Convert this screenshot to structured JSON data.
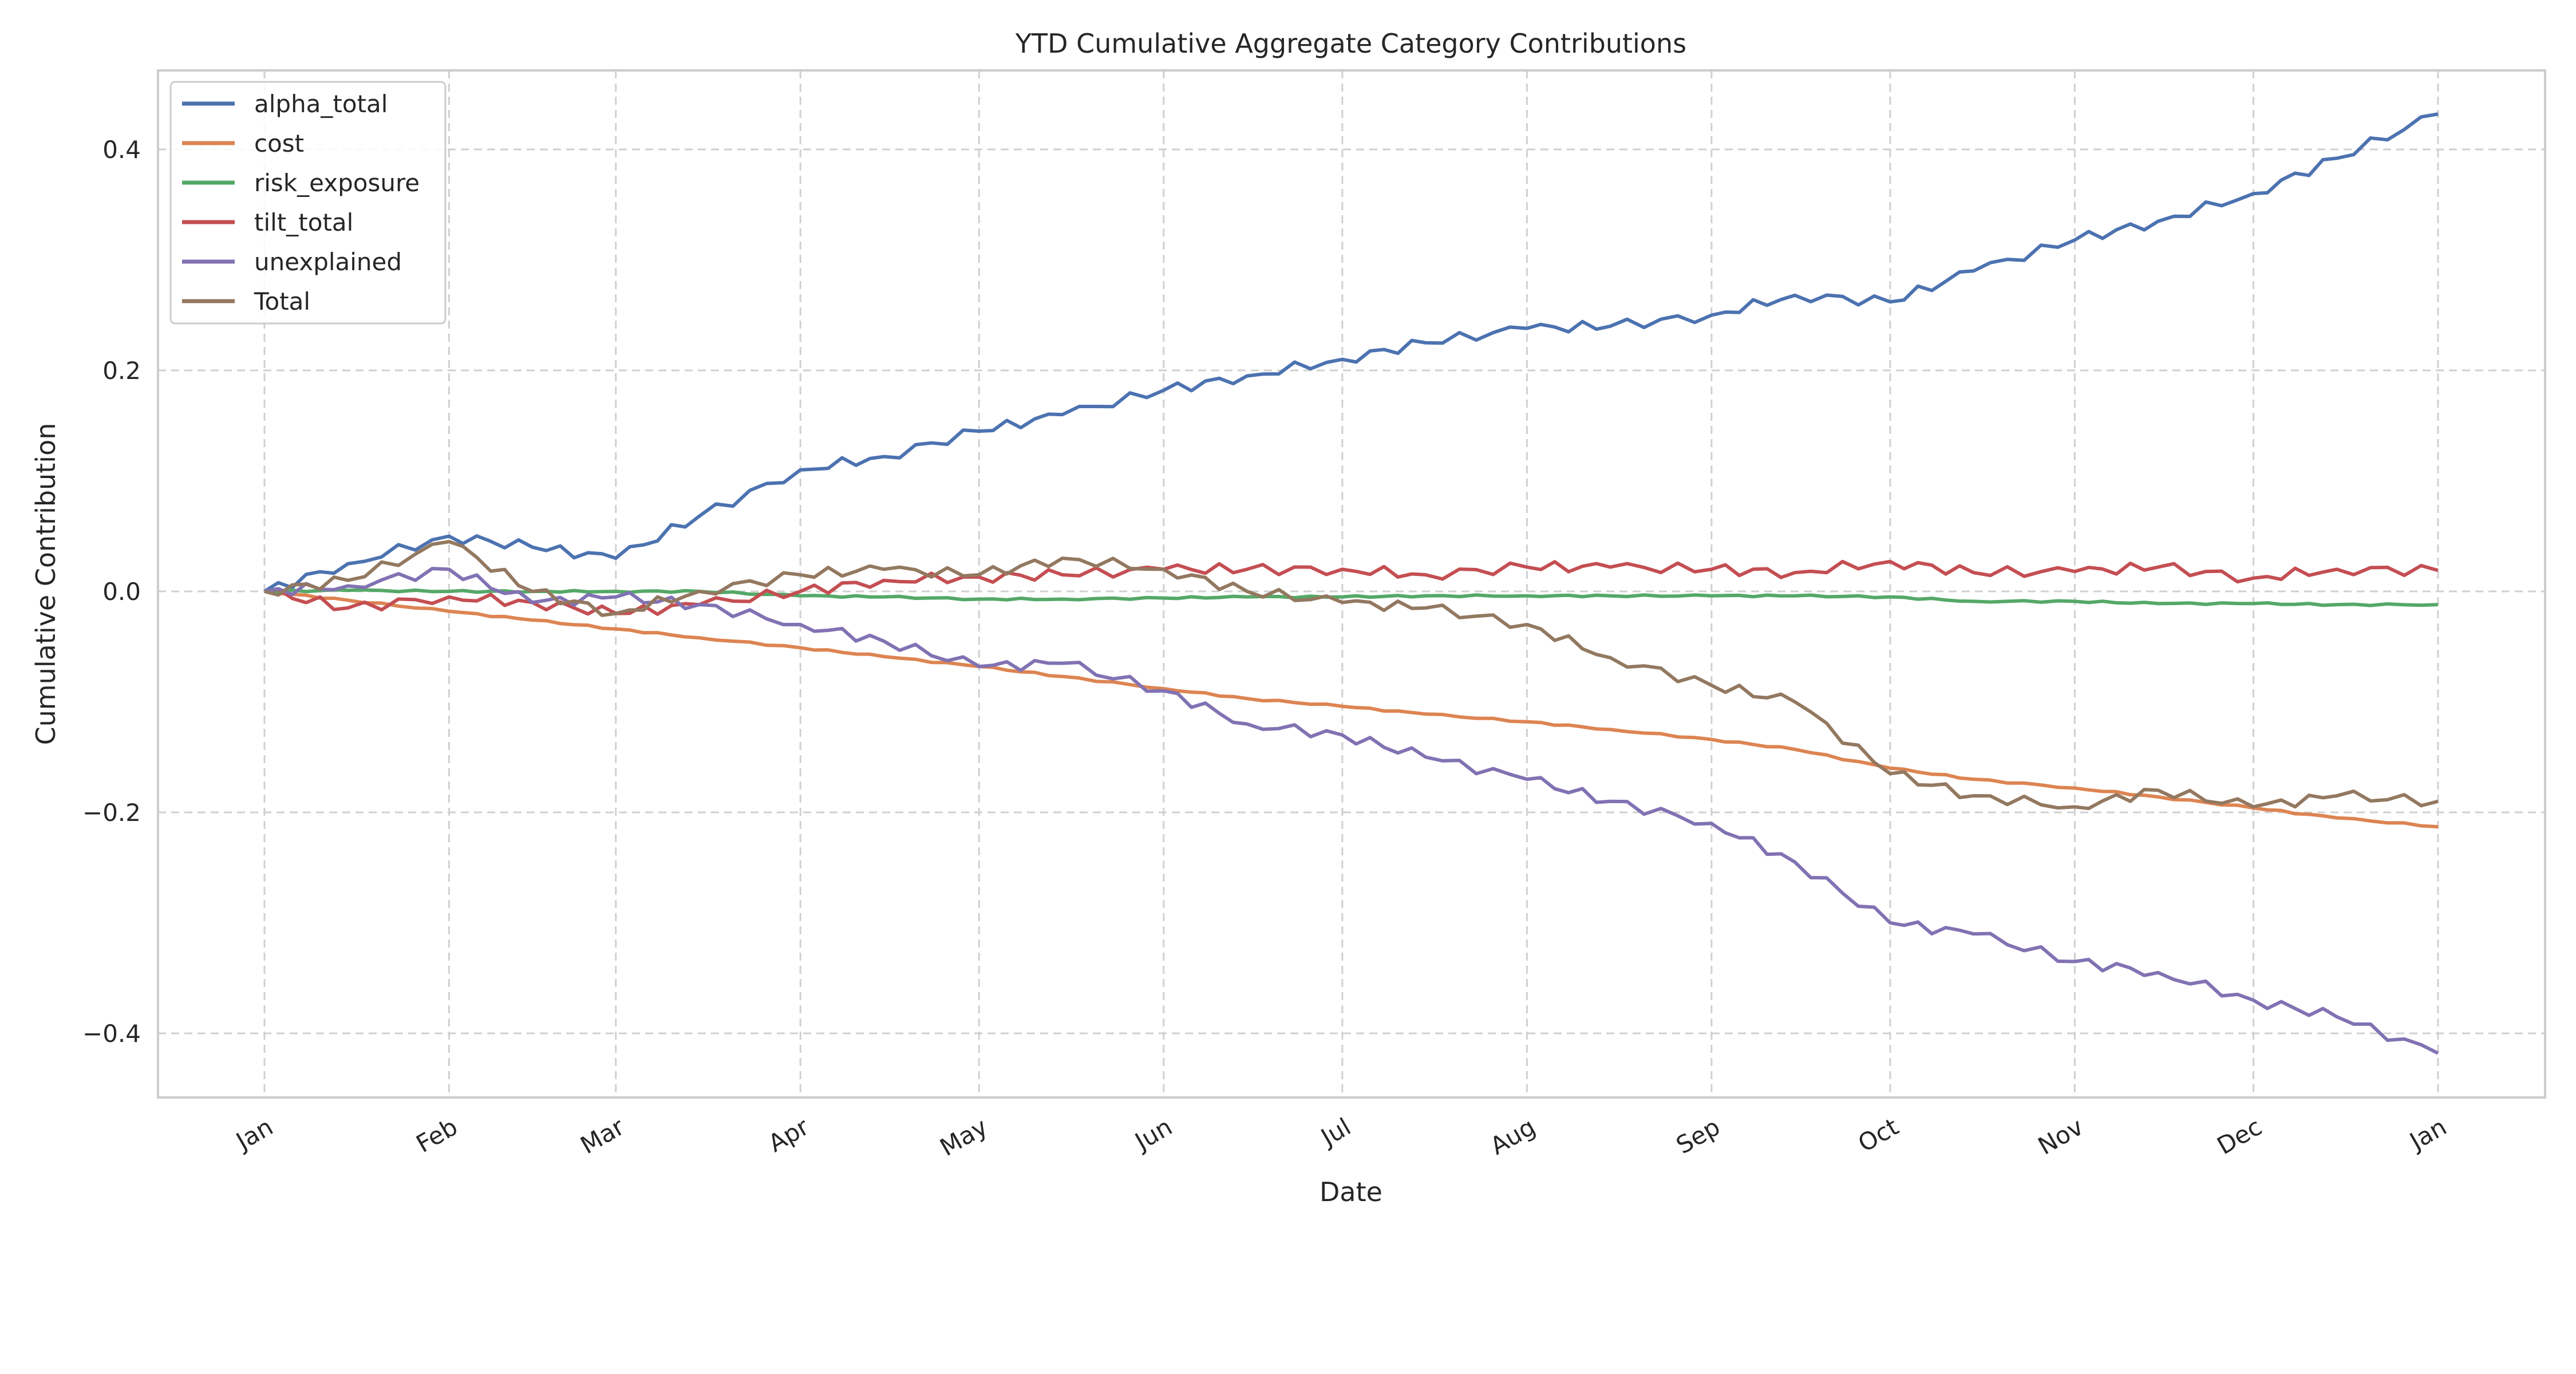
{
  "chart_data": {
    "type": "line",
    "title": "YTD Cumulative Aggregate Category Contributions",
    "xlabel": "Date",
    "ylabel": "Cumulative Contribution",
    "x_tick_labels": [
      "Jan",
      "Feb",
      "Mar",
      "Apr",
      "May",
      "Jun",
      "Jul",
      "Aug",
      "Sep",
      "Oct",
      "Nov",
      "Dec",
      "Jan"
    ],
    "x_tick_days": [
      0,
      31,
      59,
      90,
      120,
      151,
      181,
      212,
      243,
      273,
      304,
      334,
      365
    ],
    "y_ticks": [
      0.4,
      0.2,
      0.0,
      -0.2,
      -0.4
    ],
    "y_tick_labels": [
      "0.4",
      "0.2",
      "0.0",
      "−0.2",
      "−0.4"
    ],
    "ylim": [
      -0.46,
      0.475
    ],
    "xlim": [
      -18,
      383
    ],
    "grid": true,
    "legend_position": "top-left",
    "x_days": [
      0,
      14,
      31,
      45,
      59,
      73,
      90,
      104,
      120,
      134,
      151,
      165,
      181,
      195,
      212,
      226,
      243,
      257,
      273,
      287,
      304,
      318,
      334,
      348,
      365
    ],
    "series": [
      {
        "name": "alpha_total",
        "color": "#4c72b0",
        "values": [
          0,
          0.025,
          0.05,
          0.04,
          0.03,
          0.068,
          0.11,
          0.122,
          0.145,
          0.16,
          0.182,
          0.195,
          0.21,
          0.225,
          0.238,
          0.24,
          0.25,
          0.268,
          0.262,
          0.29,
          0.318,
          0.335,
          0.36,
          0.392,
          0.432
        ]
      },
      {
        "name": "cost",
        "color": "#dd8452",
        "values": [
          0,
          -0.008,
          -0.018,
          -0.026,
          -0.034,
          -0.042,
          -0.051,
          -0.059,
          -0.068,
          -0.077,
          -0.088,
          -0.097,
          -0.104,
          -0.111,
          -0.118,
          -0.125,
          -0.134,
          -0.143,
          -0.16,
          -0.17,
          -0.178,
          -0.186,
          -0.196,
          -0.205,
          -0.213
        ]
      },
      {
        "name": "risk_exposure",
        "color": "#55a868",
        "values": [
          0,
          0.001,
          0,
          0,
          0,
          0,
          -0.004,
          -0.005,
          -0.007,
          -0.007,
          -0.006,
          -0.005,
          -0.005,
          -0.004,
          -0.004,
          -0.004,
          -0.004,
          -0.004,
          -0.005,
          -0.009,
          -0.009,
          -0.011,
          -0.011,
          -0.012,
          -0.012
        ]
      },
      {
        "name": "tilt_total",
        "color": "#c44e52",
        "values": [
          0,
          -0.015,
          -0.005,
          -0.01,
          -0.02,
          -0.012,
          0,
          0.01,
          0.013,
          0.015,
          0.02,
          0.02,
          0.02,
          0.015,
          0.022,
          0.022,
          0.02,
          0.017,
          0.027,
          0.017,
          0.018,
          0.022,
          0.012,
          0.02,
          0.019
        ]
      },
      {
        "name": "unexplained",
        "color": "#8172b3",
        "values": [
          0,
          0.005,
          0.02,
          -0.01,
          -0.005,
          -0.012,
          -0.03,
          -0.045,
          -0.068,
          -0.065,
          -0.09,
          -0.12,
          -0.13,
          -0.15,
          -0.17,
          -0.19,
          -0.21,
          -0.245,
          -0.3,
          -0.31,
          -0.335,
          -0.345,
          -0.37,
          -0.385,
          -0.418
        ]
      },
      {
        "name": "Total",
        "color": "#937860",
        "values": [
          0,
          0.01,
          0.045,
          0,
          -0.02,
          0,
          0.015,
          0.02,
          0.015,
          0.03,
          0.02,
          0,
          -0.01,
          -0.015,
          -0.03,
          -0.06,
          -0.085,
          -0.1,
          -0.165,
          -0.185,
          -0.195,
          -0.18,
          -0.195,
          -0.185,
          -0.19
        ]
      }
    ]
  }
}
